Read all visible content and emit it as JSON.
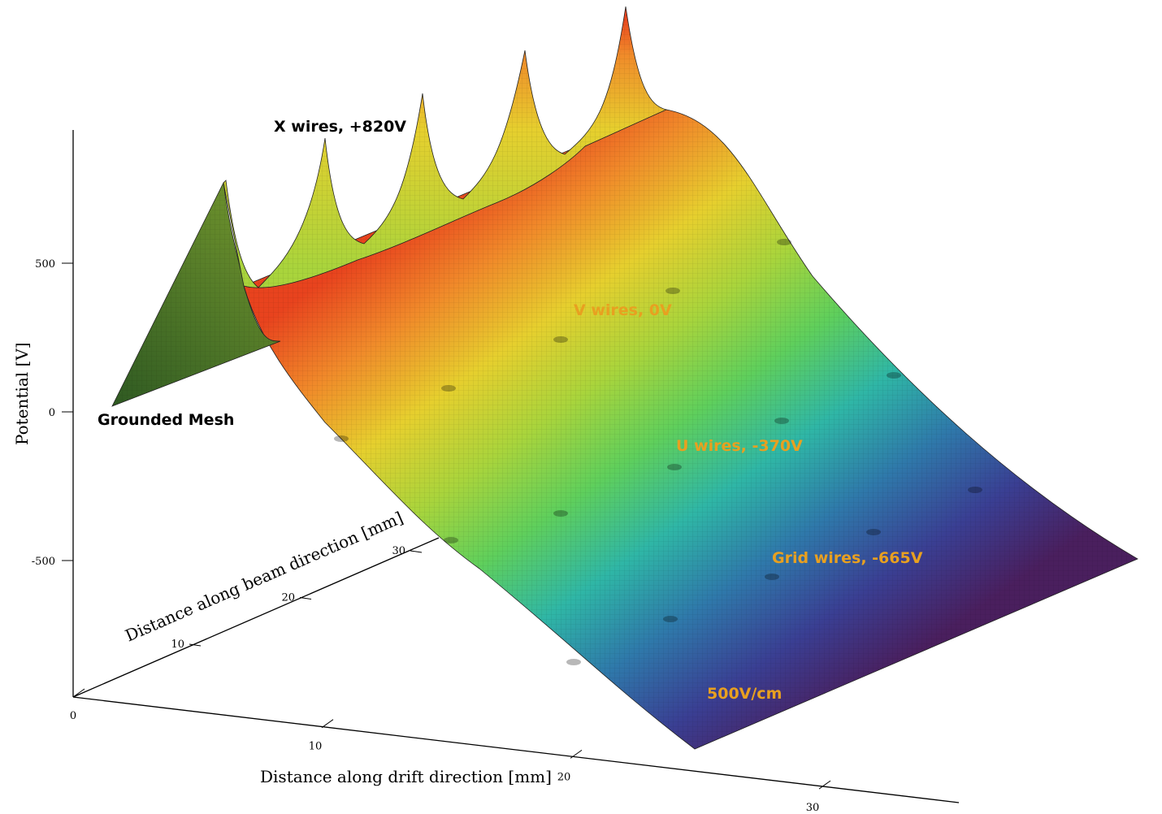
{
  "chart_data": {
    "type": "surface",
    "title": "",
    "zlabel": "Potential [V]",
    "xlabel": "Distance along drift direction [mm]",
    "ylabel": "Distance along beam direction [mm]",
    "z_ticks": [
      {
        "value": 500,
        "label": "500"
      },
      {
        "value": 0,
        "label": "0"
      },
      {
        "value": -500,
        "label": "-500"
      }
    ],
    "x_ticks": [
      {
        "value": 0,
        "label": "0"
      },
      {
        "value": 10,
        "label": "10"
      },
      {
        "value": 20,
        "label": "20"
      },
      {
        "value": 30,
        "label": "30"
      }
    ],
    "y_ticks": [
      {
        "value": 10,
        "label": "10"
      },
      {
        "value": 20,
        "label": "20"
      },
      {
        "value": 30,
        "label": "30"
      }
    ],
    "colormap": [
      "#4a1f5e",
      "#3a3f93",
      "#2f78aa",
      "#2fb6a6",
      "#5fcf5c",
      "#a9d43c",
      "#e6cf2e",
      "#f08a2a",
      "#e8431e"
    ],
    "annotations": [
      {
        "text": "X wires, +820V",
        "color": "#000000"
      },
      {
        "text": "Grounded Mesh",
        "color": "#000000"
      },
      {
        "text": "V wires,  0V",
        "color": "#e8a020"
      },
      {
        "text": "U wires, -370V",
        "color": "#e8a020"
      },
      {
        "text": "Grid wires, -665V",
        "color": "#e8a020"
      },
      {
        "text": "500V/cm",
        "color": "#e8a020"
      }
    ]
  }
}
